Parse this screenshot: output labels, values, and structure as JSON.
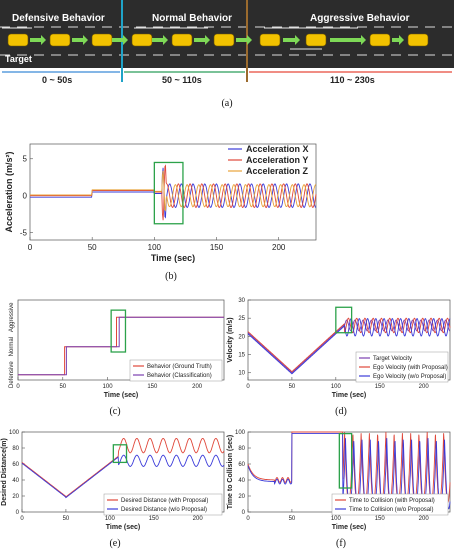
{
  "panel_a": {
    "phases": [
      {
        "label": "Defensive Behavior",
        "time": "0 ~ 50s"
      },
      {
        "label": "Normal Behavior",
        "time": "50 ~ 110s"
      },
      {
        "label": "Aggressive Behavior",
        "time": "110 ~ 230s"
      }
    ],
    "target_label": "Target",
    "caption": "(a)"
  },
  "colors": {
    "road": "#2c2c2c",
    "arrow": "#7ed957",
    "car": "#f2c200",
    "blue_divider": "#3a8ad8",
    "cyan_line": "#1fa3c8",
    "green_line": "#2a9d5a",
    "red_line": "#e8493a",
    "brown_line": "#9b6b2e",
    "red_series": "#e0473a",
    "blue_series": "#3b3bd9",
    "orange_series": "#e8a33a",
    "purple_series": "#7a3fb0",
    "box": "#2ca24a"
  },
  "chart_data": [
    {
      "id": "b",
      "type": "line",
      "caption": "(b)",
      "xlabel": "Time (sec)",
      "ylabel": "Acceleration (m/s²)",
      "xlim": [
        0,
        230
      ],
      "ylim": [
        -6,
        7
      ],
      "xticks": [
        0,
        50,
        100,
        150,
        200
      ],
      "yticks": [
        -5,
        0,
        5
      ],
      "legend": "top-right",
      "series": [
        {
          "name": "Acceleration X",
          "color": "#3b3bd9"
        },
        {
          "name": "Acceleration Y",
          "color": "#e0473a"
        },
        {
          "name": "Acceleration Z",
          "color": "#e8a33a"
        }
      ]
    },
    {
      "id": "c",
      "type": "line",
      "caption": "(c)",
      "xlabel": "Time (sec)",
      "ylabel": "",
      "xlim": [
        0,
        230
      ],
      "xticks": [
        0,
        50,
        100,
        150,
        200
      ],
      "ycategories": [
        "Defensive",
        "Normal",
        "Aggressive"
      ],
      "legend": "bottom-right",
      "series": [
        {
          "name": "Behavior (Ground Truth)",
          "color": "#e0473a"
        },
        {
          "name": "Behavior (Classification)",
          "color": "#7a3fb0"
        }
      ]
    },
    {
      "id": "d",
      "type": "line",
      "caption": "(d)",
      "xlabel": "Time (sec)",
      "ylabel": "Velocity (m/s)",
      "xlim": [
        0,
        230
      ],
      "ylim": [
        8,
        30
      ],
      "xticks": [
        0,
        50,
        100,
        150,
        200
      ],
      "yticks": [
        10,
        15,
        20,
        25,
        30
      ],
      "legend": "bottom-right",
      "series": [
        {
          "name": "Target Velocity",
          "color": "#7a3fb0"
        },
        {
          "name": "Ego Velocity (with Proposal)",
          "color": "#e0473a"
        },
        {
          "name": "Ego Velocity (w/o Proposal)",
          "color": "#3b3bd9"
        }
      ]
    },
    {
      "id": "e",
      "type": "line",
      "caption": "(e)",
      "xlabel": "Time (sec)",
      "ylabel": "Desired Distance(m)",
      "xlim": [
        0,
        230
      ],
      "ylim": [
        0,
        100
      ],
      "xticks": [
        0,
        50,
        100,
        150,
        200
      ],
      "yticks": [
        0,
        20,
        40,
        60,
        80,
        100
      ],
      "legend": "bottom-right",
      "series": [
        {
          "name": "Desired Distance (with Proposal)",
          "color": "#e0473a"
        },
        {
          "name": "Desired Distance (w/o Proposal)",
          "color": "#3b3bd9"
        }
      ]
    },
    {
      "id": "f",
      "type": "line",
      "caption": "(f)",
      "xlabel": "Time (sec)",
      "ylabel": "Time to Collision (sec)",
      "xlim": [
        0,
        230
      ],
      "ylim": [
        0,
        100
      ],
      "xticks": [
        0,
        50,
        100,
        150,
        200
      ],
      "yticks": [
        0,
        20,
        40,
        60,
        80,
        100
      ],
      "legend": "bottom-right",
      "series": [
        {
          "name": "Time to Collision (with Proposal)",
          "color": "#e0473a"
        },
        {
          "name": "Time to Collision (w/o Proposal)",
          "color": "#3b3bd9"
        }
      ]
    }
  ]
}
